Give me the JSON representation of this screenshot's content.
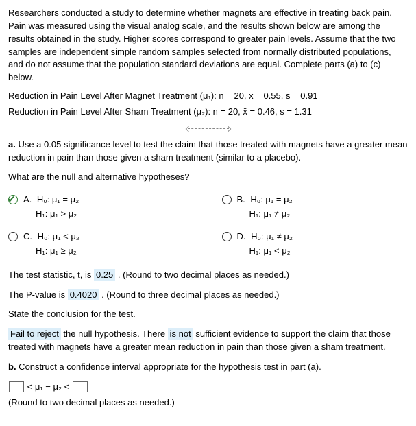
{
  "intro": "Researchers conducted a study to determine whether magnets are effective in treating back pain. Pain was measured using the visual analog scale, and the results shown below are among the results obtained in the study. Higher scores correspond to greater pain levels. Assume that the two samples are independent simple random samples selected from normally distributed populations, and do not assume that the population standard deviations are equal. Complete parts (a) to (c) below.",
  "magnet_line": "Reduction in Pain Level After Magnet Treatment (μ₁): n = 20, x̄ = 0.55, s = 0.91",
  "sham_line": "Reduction in Pain Level After Sham Treatment (μ₂): n = 20, x̄ = 0.46, s = 1.31",
  "part_a_prompt": "a. Use a 0.05 significance level to test the claim that those treated with magnets have a greater mean reduction in pain than those given a sham treatment (similar to a placebo).",
  "hyp_question": "What are the null and alternative hypotheses?",
  "options": {
    "A": {
      "label": "A.",
      "h0": "H₀: μ₁ = μ₂",
      "h1": "H₁: μ₁ > μ₂",
      "selected": true
    },
    "B": {
      "label": "B.",
      "h0": "H₀: μ₁ = μ₂",
      "h1": "H₁: μ₁ ≠ μ₂",
      "selected": false
    },
    "C": {
      "label": "C.",
      "h0": "H₀: μ₁ < μ₂",
      "h1": "H₁: μ₁ ≥ μ₂",
      "selected": false
    },
    "D": {
      "label": "D.",
      "h0": "H₀: μ₁ ≠ μ₂",
      "h1": "H₁: μ₁ < μ₂",
      "selected": false
    }
  },
  "tstat_pre": "The test statistic, t, is ",
  "tstat_val": "0.25",
  "tstat_post": " . (Round to two decimal places as needed.)",
  "pval_pre": "The P-value is ",
  "pval_val": "0.4020",
  "pval_post": " . (Round to three decimal places as needed.)",
  "state_conclusion": "State the conclusion for the test.",
  "conclusion_a": "Fail to reject",
  "conclusion_b": " the null hypothesis. There ",
  "conclusion_c": "is not",
  "conclusion_d": " sufficient evidence to support the claim that those treated with magnets have a greater mean reduction in pain than those given a sham treatment.",
  "part_b": "b. Construct a confidence interval appropriate for the hypothesis test in part (a).",
  "ci_mid": " < μ₁ − μ₂ < ",
  "round_note": "(Round to two decimal places as needed.)",
  "colors": {
    "highlight": "#dceef9",
    "check": "#2e7d32"
  }
}
